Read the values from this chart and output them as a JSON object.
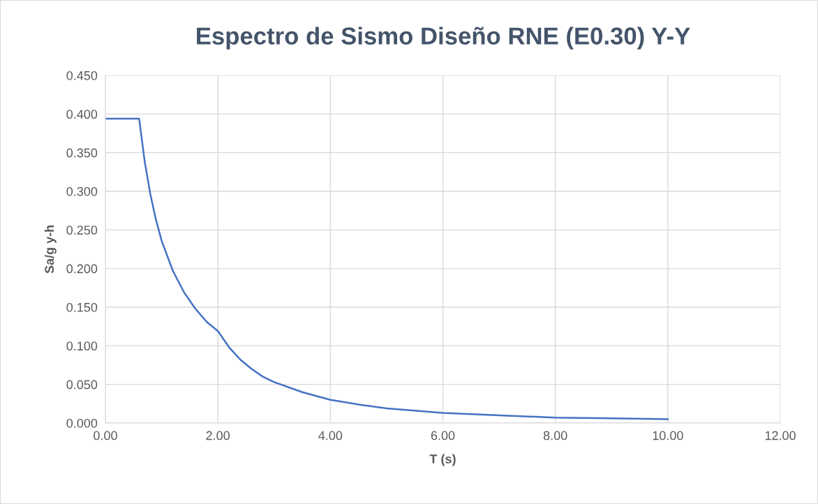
{
  "chart_data": {
    "type": "line",
    "title": "Espectro de Sismo Diseño RNE (E0.30) Y-Y",
    "xlabel": "T (s)",
    "ylabel": "Sa/g y-h",
    "x": [
      0,
      0.2,
      0.4,
      0.6,
      0.7,
      0.8,
      0.9,
      1.0,
      1.2,
      1.4,
      1.6,
      1.8,
      2.0,
      2.2,
      2.4,
      2.6,
      2.8,
      3.0,
      3.5,
      4.0,
      4.5,
      5.0,
      5.5,
      6.0,
      7.0,
      8.0,
      9.0,
      10.0
    ],
    "series": [
      {
        "color": "#4472c4",
        "values": [
          0.394,
          0.394,
          0.394,
          0.394,
          0.338,
          0.296,
          0.263,
          0.236,
          0.197,
          0.169,
          0.148,
          0.131,
          0.119,
          0.098,
          0.082,
          0.07,
          0.06,
          0.053,
          0.04,
          0.03,
          0.024,
          0.019,
          0.016,
          0.013,
          0.01,
          0.007,
          0.006,
          0.005
        ]
      }
    ],
    "xlim": [
      0,
      12
    ],
    "xticks": [
      {
        "value": 0,
        "label": "0.00"
      },
      {
        "value": 2,
        "label": "2.00"
      },
      {
        "value": 4,
        "label": "4.00"
      },
      {
        "value": 6,
        "label": "6.00"
      },
      {
        "value": 8,
        "label": "8.00"
      },
      {
        "value": 10,
        "label": "10.00"
      },
      {
        "value": 12,
        "label": "12.00"
      }
    ],
    "ylim": [
      0,
      0.45
    ],
    "yticks": [
      {
        "value": 0,
        "label": "0.000"
      },
      {
        "value": 0.05,
        "label": "0.050"
      },
      {
        "value": 0.1,
        "label": "0.100"
      },
      {
        "value": 0.15,
        "label": "0.150"
      },
      {
        "value": 0.2,
        "label": "0.200"
      },
      {
        "value": 0.25,
        "label": "0.250"
      },
      {
        "value": 0.3,
        "label": "0.300"
      },
      {
        "value": 0.35,
        "label": "0.350"
      },
      {
        "value": 0.4,
        "label": "0.400"
      },
      {
        "value": 0.45,
        "label": "0.450"
      }
    ],
    "grid": true,
    "legend": false
  }
}
